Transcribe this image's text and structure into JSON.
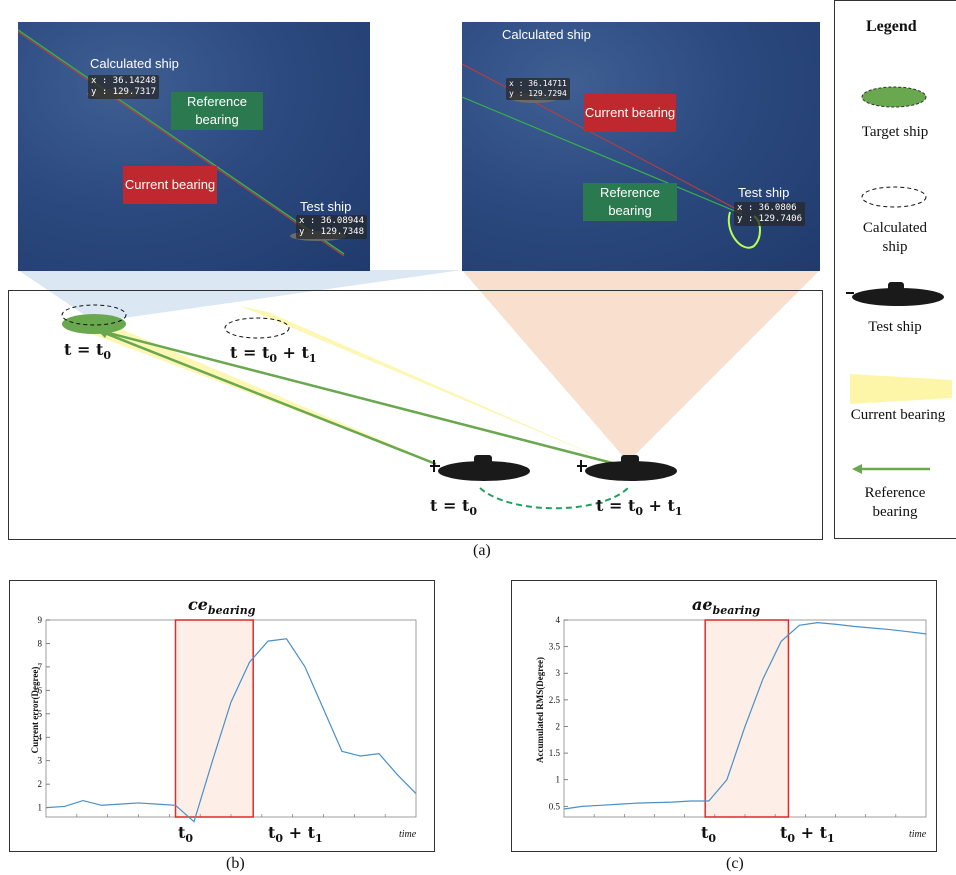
{
  "panel_a": {
    "left_sim": {
      "calculated_label": "Calculated ship",
      "calculated_x": "x : 36.14248",
      "calculated_y": "y : 129.7317",
      "reference_tag": "Reference bearing",
      "current_tag": "Current bearing",
      "test_label": "Test ship",
      "test_x": "x : 36.08944",
      "test_y": "y : 129.7348"
    },
    "right_sim": {
      "calculated_label": "Calculated ship",
      "calculated_x": "x : 36.14711",
      "calculated_y": "y : 129.7294",
      "current_tag": "Current bearing",
      "reference_tag": "Reference bearing",
      "test_label": "Test ship",
      "test_x": "x : 36.0806",
      "test_y": "y : 129.7406"
    },
    "diagram": {
      "target_time": "t = t",
      "target_time_sub": "0",
      "calc_time": "t = t",
      "calc_time_sub0": "0",
      "calc_time_plus": " + t",
      "calc_time_sub1": "1",
      "test1_time": "t = t",
      "test1_time_sub": "0",
      "test2_time": "t = t",
      "test2_time_sub0": "0",
      "test2_time_plus": " + t",
      "test2_time_sub1": "1"
    },
    "legend": {
      "title": "Legend",
      "target": "Target ship",
      "calculated_line1": "Calculated",
      "calculated_line2": "ship",
      "test": "Test ship",
      "current": "Current bearing",
      "reference_line1": "Reference",
      "reference_line2": "bearing"
    },
    "caption": "(a)",
    "colors": {
      "target": "#6aa84f",
      "reference_line": "#6aa84f",
      "current_cone": "#fdf6a8",
      "tag_green": "#2b7a4f",
      "tag_red": "#c0282f"
    }
  },
  "panel_b": {
    "caption": "(b)",
    "title_main": "ce",
    "title_sub": "bearing",
    "ylabel": "Current error(Degree)",
    "x_marker0": "t",
    "x_marker0_sub": "0",
    "x_marker1": "t",
    "x_marker1_sub0": "0",
    "x_marker1_plus": " + t",
    "x_marker1_sub1": "1",
    "time_label": "time",
    "chart_data": {
      "type": "line",
      "ylim": [
        0.6,
        9
      ],
      "yticks": [
        "1",
        "2",
        "3",
        "4",
        "5",
        "6",
        "7",
        "8",
        "9"
      ],
      "x": [
        0,
        5,
        10,
        15,
        20,
        25,
        30,
        35,
        40,
        45,
        50,
        55,
        60,
        65,
        70,
        75,
        80,
        85,
        90,
        95,
        100
      ],
      "values": [
        1.0,
        1.05,
        1.3,
        1.1,
        1.15,
        1.2,
        1.15,
        1.1,
        0.4,
        3.0,
        5.5,
        7.2,
        8.1,
        8.2,
        7.0,
        5.2,
        3.4,
        3.2,
        3.3,
        2.4,
        1.6
      ],
      "highlight_x_range": [
        35,
        56
      ]
    }
  },
  "panel_c": {
    "caption": "(c)",
    "title_main": "ae",
    "title_sub": "bearing",
    "ylabel": "Accumulated RMS(Degree)",
    "x_marker0": "t",
    "x_marker0_sub": "0",
    "x_marker1": "t",
    "x_marker1_sub0": "0",
    "x_marker1_plus": " + t",
    "x_marker1_sub1": "1",
    "time_label": "time",
    "chart_data": {
      "type": "line",
      "ylim": [
        0.3,
        4
      ],
      "yticks": [
        "0.5",
        "1",
        "1.5",
        "2",
        "2.5",
        "3",
        "3.5",
        "4"
      ],
      "x": [
        0,
        5,
        10,
        15,
        20,
        25,
        30,
        35,
        40,
        45,
        50,
        55,
        60,
        65,
        70,
        75,
        80,
        85,
        90,
        95,
        100
      ],
      "values": [
        0.45,
        0.5,
        0.52,
        0.54,
        0.56,
        0.57,
        0.58,
        0.6,
        0.6,
        1.0,
        2.0,
        2.9,
        3.6,
        3.9,
        3.95,
        3.92,
        3.88,
        3.85,
        3.82,
        3.78,
        3.74
      ],
      "highlight_x_range": [
        39,
        62
      ]
    }
  }
}
